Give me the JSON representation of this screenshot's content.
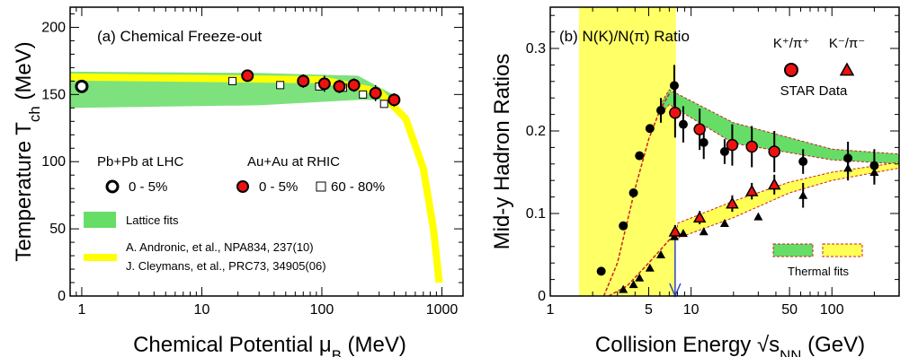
{
  "chart_data": [
    {
      "type": "scatter",
      "title": "(a) Chemical Freeze-out",
      "xlabel": "Chemical Potential μ_B (MeV)",
      "ylabel": "Temperature T_ch (MeV)",
      "xscale": "log",
      "xlim": [
        0.8,
        1500
      ],
      "ylim": [
        0,
        215
      ],
      "xticks": [
        "1",
        "10",
        "100",
        "1000"
      ],
      "yticks": [
        "0",
        "50",
        "100",
        "150",
        "200"
      ],
      "legend": {
        "lhc_label": "Pb+Pb at LHC",
        "rhic_label": "Au+Au at RHIC",
        "lhc_central": "0 - 5%",
        "rhic_central": "0 - 5%",
        "rhic_peripheral": "60 - 80%",
        "lattice": "Lattice fits",
        "ref1": "A. Andronic, et al., NPA834, 237(10)",
        "ref2": "J. Cleymans, et al., PRC73, 34905(06)"
      },
      "series": [
        {
          "name": "Pb+Pb at LHC 0 - 5%",
          "marker": "open-circle",
          "points": [
            {
              "x": 1,
              "y": 156,
              "xerr": 0.12,
              "yerr": 3
            }
          ]
        },
        {
          "name": "Au+Au at RHIC 0 - 5%",
          "marker": "red-circle",
          "points": [
            {
              "x": 24,
              "y": 164,
              "yerr": 4
            },
            {
              "x": 70,
              "y": 160,
              "yerr": 5
            },
            {
              "x": 105,
              "y": 158,
              "yerr": 6
            },
            {
              "x": 140,
              "y": 156,
              "yerr": 5
            },
            {
              "x": 185,
              "y": 157,
              "yerr": 5
            },
            {
              "x": 280,
              "y": 151,
              "yerr": 6
            },
            {
              "x": 400,
              "y": 146,
              "yerr": 5
            }
          ]
        },
        {
          "name": "Au+Au at RHIC 60 - 80%",
          "marker": "open-square",
          "points": [
            {
              "x": 18,
              "y": 160
            },
            {
              "x": 45,
              "y": 157
            },
            {
              "x": 95,
              "y": 156
            },
            {
              "x": 150,
              "y": 155
            },
            {
              "x": 220,
              "y": 150
            },
            {
              "x": 330,
              "y": 143
            }
          ]
        }
      ],
      "bands": {
        "lattice_fits": {
          "color": "#33cc55",
          "from_x": 0.8,
          "to_x": 410,
          "upper": [
            [
              0.8,
              167
            ],
            [
              30,
              166
            ],
            [
              200,
              164
            ],
            [
              410,
              149
            ]
          ],
          "lower": [
            [
              0.8,
              140
            ],
            [
              30,
              142
            ],
            [
              200,
              146
            ],
            [
              410,
              146
            ]
          ]
        },
        "cleymans_curve": {
          "color": "#ffff00",
          "points": [
            [
              0.8,
              163
            ],
            [
              100,
              161
            ],
            [
              300,
              152
            ],
            [
              500,
              132
            ],
            [
              700,
              95
            ],
            [
              850,
              50
            ],
            [
              950,
              10
            ]
          ]
        }
      }
    },
    {
      "type": "scatter",
      "title": "(b) N(K)/N(π) Ratio",
      "xlabel": "Collision Energy √s_NN (GeV)",
      "ylabel": "Mid-y Hadron Ratios",
      "xscale": "log",
      "xlim": [
        1,
        300
      ],
      "ylim": [
        0,
        0.35
      ],
      "xticks": [
        "1",
        "5",
        "10",
        "50",
        "100"
      ],
      "yticks": [
        "0",
        "0.1",
        "0.2",
        "0.3"
      ],
      "legend": {
        "kplus": "K⁺/π⁺",
        "kminus": "K⁻/π⁻",
        "star": "STAR Data",
        "thermal": "Thermal fits"
      },
      "shaded_region": {
        "color": "#ffff66",
        "x_from": 1.6,
        "x_to": 7.8
      },
      "arrow_x": 7.7,
      "series": [
        {
          "name": "K⁺/π⁺ world data",
          "marker": "black-circle",
          "points": [
            {
              "x": 2.3,
              "y": 0.03
            },
            {
              "x": 3.3,
              "y": 0.085
            },
            {
              "x": 3.9,
              "y": 0.125
            },
            {
              "x": 4.3,
              "y": 0.17
            },
            {
              "x": 5.1,
              "y": 0.203
            },
            {
              "x": 6.1,
              "y": 0.225,
              "yerr": 0.015
            },
            {
              "x": 7.6,
              "y": 0.255,
              "yerr": 0.025
            },
            {
              "x": 8.8,
              "y": 0.208,
              "yerr": 0.022
            },
            {
              "x": 12.3,
              "y": 0.186,
              "yerr": 0.02
            },
            {
              "x": 17.3,
              "y": 0.175,
              "yerr": 0.015
            },
            {
              "x": 62.4,
              "y": 0.163,
              "yerr": 0.015
            },
            {
              "x": 130,
              "y": 0.167,
              "yerr": 0.02
            },
            {
              "x": 200,
              "y": 0.158,
              "yerr": 0.02
            }
          ]
        },
        {
          "name": "K⁺/π⁺ STAR",
          "marker": "red-circle",
          "points": [
            {
              "x": 7.7,
              "y": 0.222,
              "yerr": 0.03
            },
            {
              "x": 11.5,
              "y": 0.202,
              "yerr": 0.025
            },
            {
              "x": 19.6,
              "y": 0.183,
              "yerr": 0.025
            },
            {
              "x": 27,
              "y": 0.181,
              "yerr": 0.025
            },
            {
              "x": 39,
              "y": 0.175,
              "yerr": 0.025
            }
          ]
        },
        {
          "name": "K⁻/π⁻ world data",
          "marker": "black-triangle",
          "points": [
            {
              "x": 3.3,
              "y": 0.008
            },
            {
              "x": 3.9,
              "y": 0.014
            },
            {
              "x": 4.3,
              "y": 0.022
            },
            {
              "x": 5.1,
              "y": 0.034
            },
            {
              "x": 6.1,
              "y": 0.05
            },
            {
              "x": 7.6,
              "y": 0.072
            },
            {
              "x": 8.8,
              "y": 0.076
            },
            {
              "x": 12.3,
              "y": 0.078
            },
            {
              "x": 17.3,
              "y": 0.088
            },
            {
              "x": 30,
              "y": 0.096
            },
            {
              "x": 62.4,
              "y": 0.122,
              "yerr": 0.015
            },
            {
              "x": 130,
              "y": 0.155,
              "yerr": 0.015
            },
            {
              "x": 200,
              "y": 0.15,
              "yerr": 0.015
            }
          ]
        },
        {
          "name": "K⁻/π⁻ STAR",
          "marker": "red-triangle",
          "points": [
            {
              "x": 7.7,
              "y": 0.078,
              "yerr": 0.008
            },
            {
              "x": 11.5,
              "y": 0.095,
              "yerr": 0.008
            },
            {
              "x": 19.6,
              "y": 0.112,
              "yerr": 0.01
            },
            {
              "x": 27,
              "y": 0.127,
              "yerr": 0.01
            },
            {
              "x": 39,
              "y": 0.135,
              "yerr": 0.012
            }
          ]
        }
      ],
      "bands": {
        "kplus_thermal": {
          "color": "#33cc55",
          "upper": [
            [
              6.2,
              0.235
            ],
            [
              7,
              0.25
            ],
            [
              20,
              0.21
            ],
            [
              100,
              0.178
            ],
            [
              300,
              0.172
            ]
          ],
          "lower": [
            [
              6.2,
              0.222
            ],
            [
              7,
              0.232
            ],
            [
              20,
              0.185
            ],
            [
              100,
              0.165
            ],
            [
              300,
              0.16
            ]
          ]
        },
        "kminus_thermal": {
          "color": "#ffff55",
          "upper": [
            [
              8,
              0.088
            ],
            [
              20,
              0.115
            ],
            [
              50,
              0.138
            ],
            [
              100,
              0.15
            ],
            [
              300,
              0.162
            ]
          ],
          "lower": [
            [
              8,
              0.07
            ],
            [
              20,
              0.095
            ],
            [
              50,
              0.125
            ],
            [
              100,
              0.14
            ],
            [
              300,
              0.155
            ]
          ]
        },
        "kplus_curve": [
          [
            2.4,
            0
          ],
          [
            3,
            0.04
          ],
          [
            4,
            0.13
          ],
          [
            5,
            0.19
          ],
          [
            6,
            0.225
          ],
          [
            7,
            0.245
          ]
        ],
        "kminus_curve": [
          [
            2.6,
            0
          ],
          [
            3.5,
            0.012
          ],
          [
            5,
            0.04
          ],
          [
            7,
            0.068
          ],
          [
            8,
            0.075
          ]
        ]
      }
    }
  ]
}
